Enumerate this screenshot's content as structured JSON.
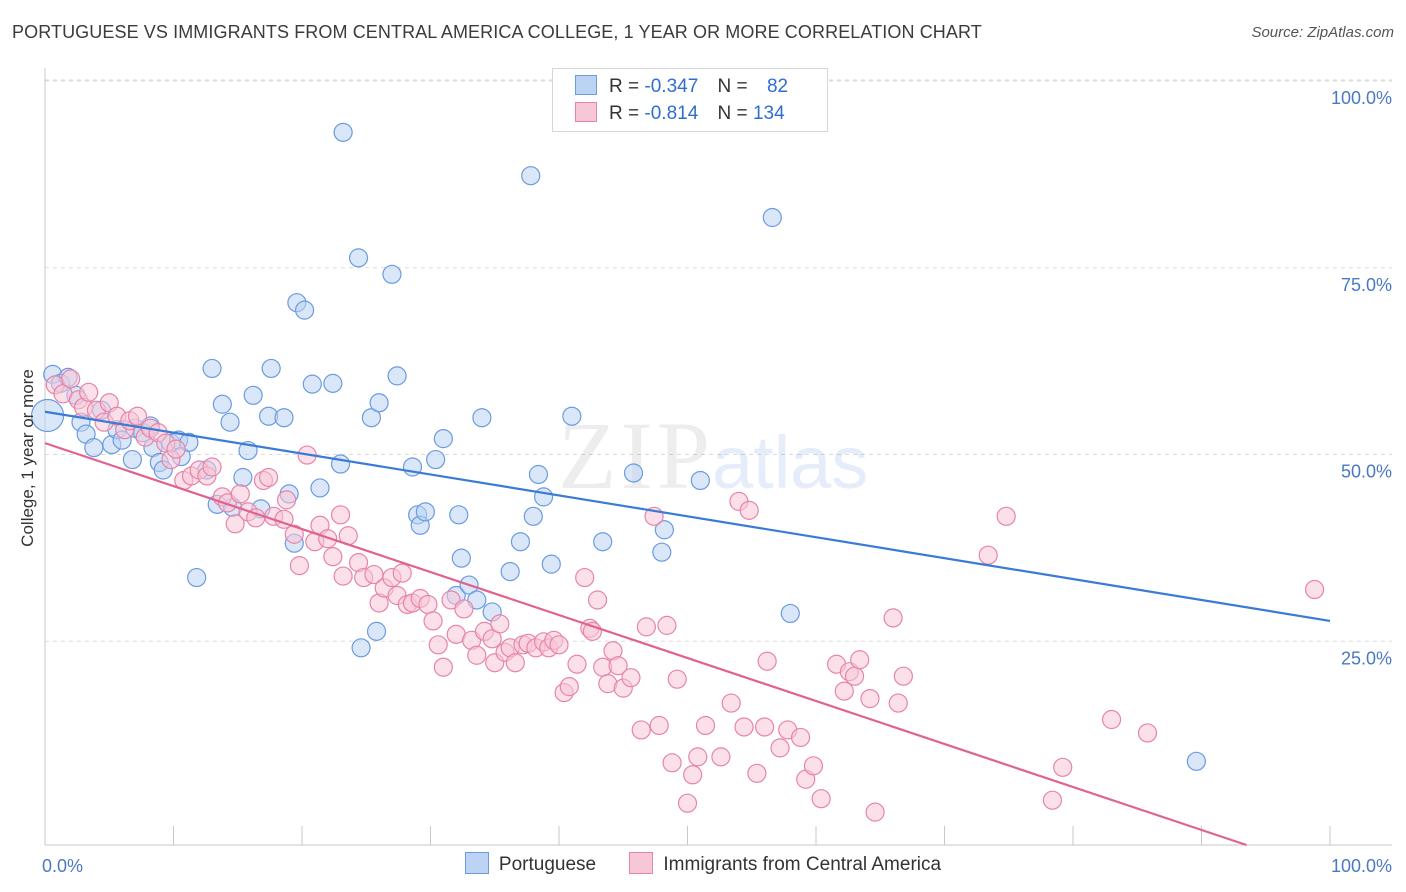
{
  "title": "PORTUGUESE VS IMMIGRANTS FROM CENTRAL AMERICA COLLEGE, 1 YEAR OR MORE CORRELATION CHART",
  "source": "Source: ZipAtlas.com",
  "watermark": {
    "zip": "ZIP",
    "atlas": "atlas"
  },
  "legend": {
    "rows": [
      {
        "r_label": "R =",
        "r_value": "-0.347",
        "n_label": "N =",
        "n_value": "82",
        "color": "#6b9be0",
        "fill": "#bcd3f3"
      },
      {
        "r_label": "R =",
        "r_value": "-0.814",
        "n_label": "N =",
        "n_value": "134",
        "color": "#e884a8",
        "fill": "#f7c6d7"
      }
    ]
  },
  "bottom_legend": [
    {
      "label": "Portuguese",
      "color": "#6b9be0",
      "fill": "#bcd3f3"
    },
    {
      "label": "Immigrants from Central America",
      "color": "#e884a8",
      "fill": "#f7c6d7"
    }
  ],
  "chart_data": {
    "type": "scatter",
    "ylabel": "College, 1 year or more",
    "xlim": [
      0,
      100
    ],
    "ylim": [
      0,
      100
    ],
    "x_tick_labels": [
      "0.0%",
      "100.0%"
    ],
    "y_ticks": [
      25,
      50,
      75,
      100
    ],
    "y_tick_labels": [
      "25.0%",
      "50.0%",
      "75.0%",
      "100.0%"
    ],
    "grid": true,
    "series": [
      {
        "name": "Portuguese",
        "color": "#3a7bd5",
        "point_stroke": "#6b9be0",
        "point_fill": "#bcd3f3",
        "trend": [
          [
            0,
            58.0
          ],
          [
            100,
            30.0
          ]
        ],
        "points": [
          [
            0.2,
            57.5
          ],
          [
            0.6,
            63
          ],
          [
            1.2,
            61.8
          ],
          [
            1.8,
            62.6
          ],
          [
            2.4,
            60.2
          ],
          [
            2.8,
            56.6
          ],
          [
            3.2,
            55
          ],
          [
            3.8,
            53.2
          ],
          [
            4.4,
            58.2
          ],
          [
            5.2,
            53.6
          ],
          [
            5.6,
            55.6
          ],
          [
            6.0,
            54.2
          ],
          [
            6.8,
            51.6
          ],
          [
            7.0,
            55.8
          ],
          [
            7.6,
            55.2
          ],
          [
            8.2,
            56.1
          ],
          [
            8.4,
            53.2
          ],
          [
            8.9,
            51.2
          ],
          [
            9.2,
            50.2
          ],
          [
            9.8,
            53.8
          ],
          [
            10.4,
            54.2
          ],
          [
            10.6,
            52
          ],
          [
            11.2,
            53.9
          ],
          [
            11.8,
            35.8
          ],
          [
            12.6,
            50.2
          ],
          [
            13.0,
            63.8
          ],
          [
            13.4,
            45.6
          ],
          [
            13.8,
            59
          ],
          [
            14.4,
            56.6
          ],
          [
            14.6,
            45.2
          ],
          [
            15.4,
            49.2
          ],
          [
            15.8,
            52.8
          ],
          [
            16.2,
            60.2
          ],
          [
            16.8,
            45
          ],
          [
            17.4,
            57.4
          ],
          [
            17.6,
            63.8
          ],
          [
            18.6,
            57.2
          ],
          [
            19.0,
            47
          ],
          [
            19.4,
            40.4
          ],
          [
            19.6,
            72.6
          ],
          [
            20.2,
            71.6
          ],
          [
            20.8,
            61.7
          ],
          [
            21.4,
            47.8
          ],
          [
            22.4,
            61.8
          ],
          [
            23.0,
            51
          ],
          [
            23.2,
            95.4
          ],
          [
            24.4,
            78.6
          ],
          [
            25.4,
            57.2
          ],
          [
            25.8,
            28.6
          ],
          [
            24.6,
            26.4
          ],
          [
            26.0,
            59.2
          ],
          [
            27.0,
            76.4
          ],
          [
            27.4,
            62.8
          ],
          [
            28.6,
            50.6
          ],
          [
            29.0,
            44.2
          ],
          [
            29.2,
            42.8
          ],
          [
            29.6,
            44.6
          ],
          [
            30.4,
            51.6
          ],
          [
            31.0,
            54.4
          ],
          [
            32.2,
            44.2
          ],
          [
            32.4,
            38.4
          ],
          [
            32.0,
            33.4
          ],
          [
            33.0,
            34.8
          ],
          [
            33.6,
            32.8
          ],
          [
            34.0,
            57.2
          ],
          [
            34.8,
            31.2
          ],
          [
            36.2,
            36.6
          ],
          [
            37.0,
            40.6
          ],
          [
            37.8,
            89.6
          ],
          [
            38.0,
            44
          ],
          [
            38.4,
            49.6
          ],
          [
            38.8,
            46.6
          ],
          [
            39.4,
            37.6
          ],
          [
            41.0,
            57.4
          ],
          [
            43.4,
            40.6
          ],
          [
            45.8,
            49.8
          ],
          [
            48.2,
            42.2
          ],
          [
            48.0,
            39.2
          ],
          [
            51.0,
            48.8
          ],
          [
            56.6,
            84
          ],
          [
            58.0,
            31
          ],
          [
            89.6,
            11.2
          ]
        ]
      },
      {
        "name": "Immigrants from Central America",
        "color": "#e2628e",
        "point_stroke": "#e884a8",
        "point_fill": "#f7c6d7",
        "trend": [
          [
            0,
            53.8
          ],
          [
            93.5,
            0
          ]
        ],
        "points": [
          [
            0.8,
            61.6
          ],
          [
            1.4,
            60.4
          ],
          [
            2.0,
            62.4
          ],
          [
            2.6,
            59.6
          ],
          [
            3.0,
            58.6
          ],
          [
            3.4,
            60.6
          ],
          [
            4.0,
            58.2
          ],
          [
            4.6,
            56.6
          ],
          [
            5.0,
            59.2
          ],
          [
            5.6,
            57.4
          ],
          [
            6.2,
            55.6
          ],
          [
            6.6,
            56.8
          ],
          [
            7.2,
            57.4
          ],
          [
            7.8,
            54.6
          ],
          [
            8.2,
            55.8
          ],
          [
            8.8,
            55.2
          ],
          [
            9.4,
            53.8
          ],
          [
            9.8,
            51.6
          ],
          [
            10.2,
            53
          ],
          [
            10.8,
            48.8
          ],
          [
            11.4,
            49.4
          ],
          [
            12.0,
            50.2
          ],
          [
            12.6,
            49.4
          ],
          [
            13.0,
            50.6
          ],
          [
            13.8,
            46.6
          ],
          [
            14.2,
            45.8
          ],
          [
            14.8,
            43
          ],
          [
            15.2,
            47
          ],
          [
            15.8,
            44.6
          ],
          [
            16.4,
            43.8
          ],
          [
            17.0,
            48.8
          ],
          [
            17.4,
            49.2
          ],
          [
            17.8,
            44
          ],
          [
            18.6,
            43.6
          ],
          [
            18.8,
            46.2
          ],
          [
            19.4,
            41.6
          ],
          [
            19.8,
            37.4
          ],
          [
            20.4,
            52.2
          ],
          [
            21.0,
            40.6
          ],
          [
            21.4,
            42.8
          ],
          [
            22.0,
            41
          ],
          [
            22.4,
            38.6
          ],
          [
            23.0,
            44.2
          ],
          [
            23.6,
            41.4
          ],
          [
            23.2,
            36
          ],
          [
            24.4,
            37.8
          ],
          [
            24.8,
            35.8
          ],
          [
            25.6,
            36.2
          ],
          [
            26.0,
            32.4
          ],
          [
            26.4,
            34.4
          ],
          [
            27.0,
            35.8
          ],
          [
            27.4,
            33.4
          ],
          [
            27.8,
            36.4
          ],
          [
            28.2,
            32.2
          ],
          [
            28.6,
            32.4
          ],
          [
            29.2,
            33
          ],
          [
            29.8,
            32.2
          ],
          [
            30.2,
            30
          ],
          [
            30.6,
            26.8
          ],
          [
            31.0,
            23.8
          ],
          [
            31.6,
            32.8
          ],
          [
            32.0,
            28.2
          ],
          [
            32.6,
            31.6
          ],
          [
            33.2,
            27.4
          ],
          [
            33.6,
            25.4
          ],
          [
            34.2,
            28.6
          ],
          [
            34.8,
            27.6
          ],
          [
            35.0,
            24.4
          ],
          [
            35.4,
            29.6
          ],
          [
            35.8,
            25.8
          ],
          [
            36.2,
            26.4
          ],
          [
            36.6,
            24.4
          ],
          [
            37.2,
            26.8
          ],
          [
            37.6,
            27
          ],
          [
            38.2,
            26.4
          ],
          [
            38.8,
            27.2
          ],
          [
            39.2,
            26.4
          ],
          [
            39.6,
            27.4
          ],
          [
            40.0,
            26.8
          ],
          [
            40.4,
            20.4
          ],
          [
            40.8,
            21.2
          ],
          [
            41.4,
            24.2
          ],
          [
            42.0,
            35.8
          ],
          [
            42.4,
            29
          ],
          [
            42.6,
            28.6
          ],
          [
            43.0,
            32.8
          ],
          [
            43.4,
            23.8
          ],
          [
            43.8,
            21.6
          ],
          [
            44.2,
            26
          ],
          [
            44.6,
            24
          ],
          [
            45.0,
            21
          ],
          [
            45.6,
            22.4
          ],
          [
            46.4,
            15.4
          ],
          [
            46.8,
            29.2
          ],
          [
            47.4,
            44
          ],
          [
            47.8,
            16
          ],
          [
            48.4,
            29.4
          ],
          [
            48.8,
            11
          ],
          [
            49.2,
            22.2
          ],
          [
            50.0,
            5.6
          ],
          [
            50.4,
            9.4
          ],
          [
            50.8,
            11.8
          ],
          [
            51.4,
            16
          ],
          [
            52.6,
            11.8
          ],
          [
            53.4,
            19
          ],
          [
            54.0,
            46
          ],
          [
            54.4,
            15.8
          ],
          [
            54.8,
            44.8
          ],
          [
            55.4,
            9.6
          ],
          [
            56.0,
            15.8
          ],
          [
            56.2,
            24.6
          ],
          [
            57.2,
            13
          ],
          [
            57.8,
            15.4
          ],
          [
            58.8,
            14.4
          ],
          [
            59.2,
            8.8
          ],
          [
            59.8,
            10.6
          ],
          [
            60.4,
            6.2
          ],
          [
            61.6,
            24.2
          ],
          [
            62.2,
            20.6
          ],
          [
            62.6,
            23.2
          ],
          [
            63.0,
            22.6
          ],
          [
            63.4,
            24.8
          ],
          [
            64.2,
            19.6
          ],
          [
            64.6,
            4.4
          ],
          [
            66.0,
            30.4
          ],
          [
            66.4,
            19
          ],
          [
            66.8,
            22.6
          ],
          [
            73.4,
            38.8
          ],
          [
            74.8,
            44
          ],
          [
            78.4,
            6
          ],
          [
            79.2,
            10.4
          ],
          [
            83.0,
            16.8
          ],
          [
            85.8,
            15
          ],
          [
            98.8,
            34.2
          ]
        ]
      }
    ]
  }
}
